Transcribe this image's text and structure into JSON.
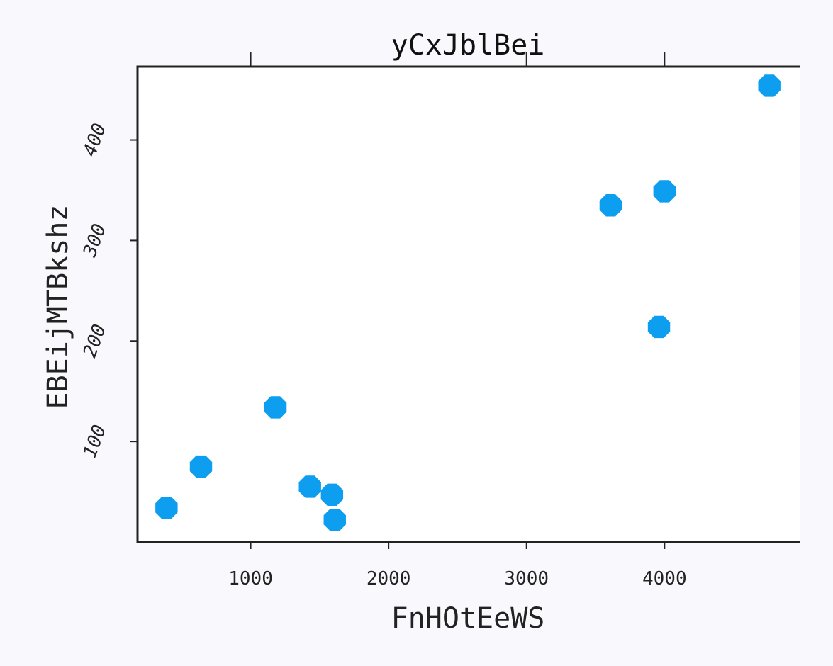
{
  "colors": {
    "background": "#f9f8fd",
    "plot_background": "#ffffff",
    "axis": "#222222",
    "point": "#0d9ef0"
  },
  "chart_data": {
    "type": "scatter",
    "title": "yCxJblBei",
    "xlabel": "FnHOtEeWS",
    "ylabel": "EBEijMTBkshz",
    "xlim": [
      180,
      4980
    ],
    "ylim": [
      0,
      473
    ],
    "xticks": [
      1000,
      2000,
      3000,
      4000
    ],
    "xtick_labels": [
      "1000",
      "2000",
      "3000",
      "4000"
    ],
    "yticks": [
      100,
      200,
      300,
      400
    ],
    "ytick_labels": [
      "100",
      "200",
      "300",
      "400"
    ],
    "top_ticks": [
      1000,
      3000,
      4000
    ],
    "grid": false,
    "marker": "octagon",
    "series": [
      {
        "x": [
          390,
          640,
          1180,
          1430,
          1590,
          1610,
          3610,
          3960,
          4000,
          4760
        ],
        "y": [
          34,
          75,
          134,
          55,
          47,
          22,
          335,
          214,
          349,
          454
        ]
      }
    ]
  }
}
